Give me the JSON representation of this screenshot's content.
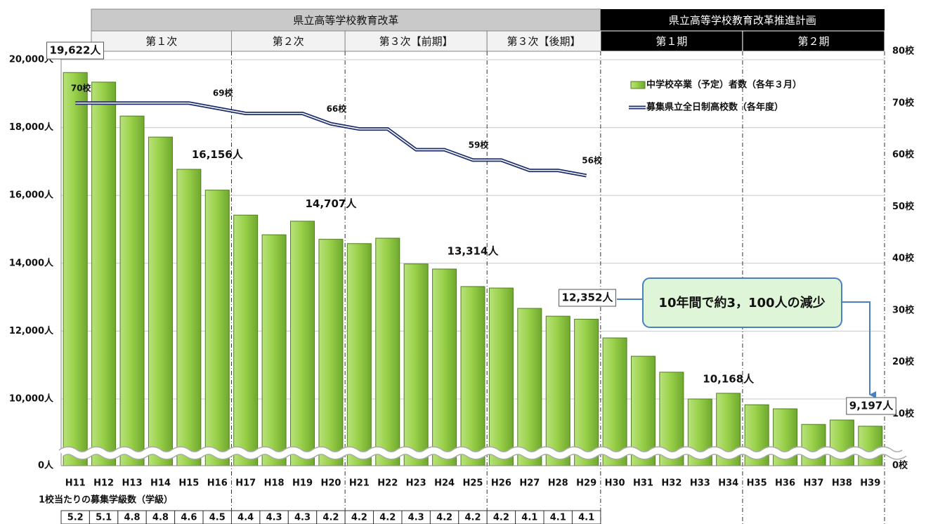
{
  "header": {
    "reform": "県立高等学校教育改革",
    "reform_periods": [
      "第１次",
      "第２次",
      "第３次【前期】",
      "第３次【後期】"
    ],
    "plan": "県立高等学校教育改革推進計画",
    "plan_periods": [
      "第１期",
      "第２期"
    ]
  },
  "chart_data": {
    "type": "combo",
    "categories": [
      "H11",
      "H12",
      "H13",
      "H14",
      "H15",
      "H16",
      "H17",
      "H18",
      "H19",
      "H20",
      "H21",
      "H22",
      "H23",
      "H24",
      "H25",
      "H26",
      "H27",
      "H28",
      "H29",
      "H30",
      "H31",
      "H32",
      "H33",
      "H34",
      "H35",
      "H36",
      "H37",
      "H38",
      "H39"
    ],
    "series": [
      {
        "name": "中学校卒業（予定）者数（各年３月）",
        "type": "bar",
        "color": "#8cc63f",
        "values": [
          19622,
          19340,
          18340,
          17720,
          16770,
          16156,
          15420,
          14840,
          15240,
          14707,
          14580,
          14740,
          13980,
          13830,
          13314,
          13270,
          12670,
          12440,
          12352,
          11800,
          11260,
          10790,
          10000,
          10168,
          9830,
          9710,
          9250,
          9380,
          9197
        ],
        "value_labels": [
          "19,622人",
          null,
          null,
          null,
          null,
          "16,156人",
          null,
          null,
          null,
          "14,707人",
          null,
          null,
          null,
          null,
          "13,314人",
          null,
          null,
          null,
          "12,352人",
          null,
          null,
          null,
          null,
          "10,168人",
          null,
          null,
          null,
          null,
          "9,197人"
        ]
      },
      {
        "name": "募集県立全日制高校数（各年度）",
        "type": "line",
        "axis": "y2",
        "color": "#1f2f6e",
        "values": [
          70,
          70,
          70,
          70,
          70,
          69,
          68,
          68,
          68,
          66,
          65,
          65,
          61,
          61,
          59,
          59,
          57,
          57,
          56,
          null,
          null,
          null,
          null,
          null,
          null,
          null,
          null,
          null,
          null
        ],
        "value_labels": [
          "70校",
          null,
          null,
          null,
          null,
          "69校",
          null,
          null,
          null,
          "66校",
          null,
          null,
          null,
          null,
          "59校",
          null,
          null,
          null,
          "56校",
          null,
          null,
          null,
          null,
          null,
          null,
          null,
          null,
          null,
          null
        ]
      }
    ],
    "ylim": [
      0,
      20000
    ],
    "yticks": [
      {
        "value": 0,
        "label": "0人"
      },
      {
        "value": 10000,
        "label": "10,000人"
      },
      {
        "value": 12000,
        "label": "12,000人"
      },
      {
        "value": 14000,
        "label": "14,000人"
      },
      {
        "value": 16000,
        "label": "16,000人"
      },
      {
        "value": 18000,
        "label": "18,000人"
      },
      {
        "value": 20000,
        "label": "20,000人"
      }
    ],
    "axis_break": true,
    "y2lim": [
      0,
      80
    ],
    "y2ticks": [
      {
        "value": 0,
        "label": "0校"
      },
      {
        "value": 10,
        "label": "10校"
      },
      {
        "value": 20,
        "label": "20校"
      },
      {
        "value": 30,
        "label": "30校"
      },
      {
        "value": 40,
        "label": "40校"
      },
      {
        "value": 50,
        "label": "50校"
      },
      {
        "value": 60,
        "label": "60校"
      },
      {
        "value": 70,
        "label": "70校"
      },
      {
        "value": 80,
        "label": "80校"
      }
    ],
    "grid": true,
    "legend": "upper right",
    "annotation": "10年間で約3，100人の減少"
  },
  "classes_per_school": {
    "label": "1校当たりの募集学級数（学級）",
    "values": [
      5.2,
      5.1,
      4.8,
      4.8,
      4.6,
      4.5,
      4.4,
      4.3,
      4.3,
      4.2,
      4.2,
      4.2,
      4.3,
      4.2,
      4.2,
      4.2,
      4.1,
      4.1,
      4.1
    ]
  }
}
